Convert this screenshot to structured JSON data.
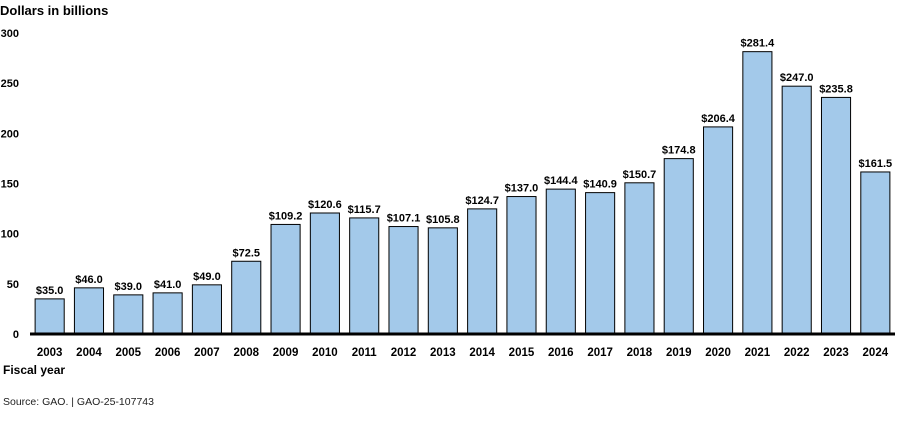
{
  "chart_data": {
    "type": "bar",
    "ylabel": "Dollars in billions",
    "xlabel": "Fiscal year",
    "ylim": [
      0,
      300
    ],
    "yticks": [
      0,
      50,
      100,
      150,
      200,
      250,
      300
    ],
    "categories": [
      "2003",
      "2004",
      "2005",
      "2006",
      "2007",
      "2008",
      "2009",
      "2010",
      "2011",
      "2012",
      "2013",
      "2014",
      "2015",
      "2016",
      "2017",
      "2018",
      "2019",
      "2020",
      "2021",
      "2022",
      "2023",
      "2024"
    ],
    "values": [
      35.0,
      46.0,
      39.0,
      41.0,
      49.0,
      72.5,
      109.2,
      120.6,
      115.7,
      107.1,
      105.8,
      124.7,
      137.0,
      144.4,
      140.9,
      150.7,
      174.8,
      206.4,
      281.4,
      247.0,
      235.8,
      161.5
    ],
    "data_labels": [
      "$35.0",
      "$46.0",
      "$39.0",
      "$41.0",
      "$49.0",
      "$72.5",
      "$109.2",
      "$120.6",
      "$115.7",
      "$107.1",
      "$105.8",
      "$124.7",
      "$137.0",
      "$144.4",
      "$140.9",
      "$150.7",
      "$174.8",
      "$206.4",
      "$281.4",
      "$247.0",
      "$235.8",
      "$161.5"
    ],
    "bar_color": "#a3c9ea",
    "bar_stroke": "#000000",
    "grid": false
  },
  "source": "Source: GAO.  |  GAO-25-107743"
}
